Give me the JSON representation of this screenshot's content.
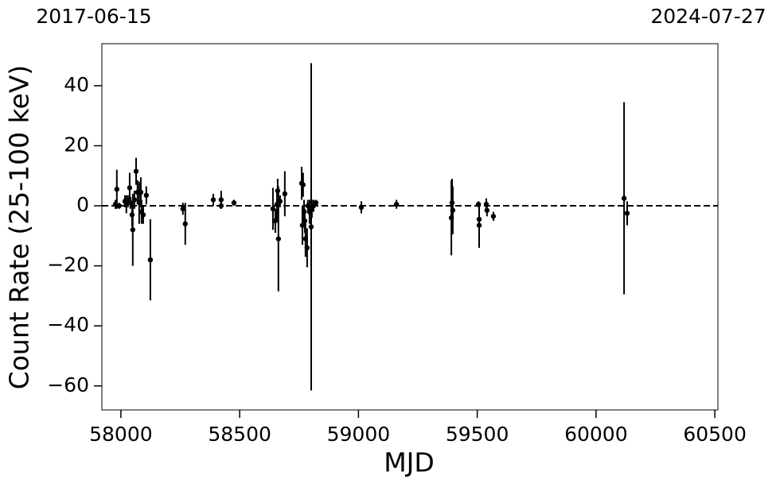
{
  "chart_data": {
    "type": "errorbar",
    "x2_labels": [
      "2017-06-15",
      "2024-07-27"
    ],
    "xlabel": "MJD",
    "ylabel": "Count Rate (25-100 keV)",
    "x": [
      57977,
      57983,
      57993,
      58017,
      58023,
      58030,
      58037,
      58040,
      58047,
      58050,
      58057,
      58064,
      58070,
      58077,
      58084,
      58087,
      58094,
      58107,
      58124,
      58261,
      58271,
      58389,
      58422,
      58422,
      58476,
      58640,
      58650,
      58657,
      58660,
      58663,
      58670,
      58690,
      58761,
      58764,
      58767,
      58771,
      58774,
      58777,
      58784,
      58787,
      58794,
      58801,
      58804,
      58811,
      58821,
      59012,
      59160,
      59391,
      59394,
      59397,
      59505,
      59508,
      59508,
      59538,
      59541,
      59568,
      60118,
      60131
    ],
    "values": [
      0.5,
      5.5,
      0,
      1.5,
      0.5,
      1.5,
      6,
      1,
      -3,
      -8,
      2,
      11.5,
      4.5,
      1,
      4.5,
      -2,
      -3,
      3.5,
      -18,
      -1,
      -6,
      2,
      2,
      0,
      1,
      -1,
      -5,
      0.5,
      5,
      -11,
      1.5,
      4,
      7.5,
      -6.5,
      7,
      -2,
      -5,
      -11,
      -14,
      0,
      -2,
      -7,
      -1,
      0,
      1,
      -0.5,
      0.5,
      -4,
      1,
      -1.5,
      0.5,
      -4.5,
      -6.5,
      0.5,
      -1.5,
      -3.5,
      2.5,
      -2.5
    ],
    "errors": [
      1.5,
      6.5,
      1,
      2,
      3,
      2,
      5,
      2,
      4,
      12,
      3,
      4.5,
      4,
      7,
      5,
      4,
      3,
      3,
      13.5,
      2,
      7,
      2,
      3,
      1,
      1,
      7,
      4,
      5,
      4,
      17.5,
      2,
      7.5,
      5.5,
      6.5,
      4,
      4,
      4,
      6,
      6.5,
      2,
      4,
      54.5,
      3,
      2,
      1,
      2,
      1.5,
      12.5,
      8,
      8,
      1,
      5,
      7.5,
      2,
      2,
      1.5,
      32,
      4
    ],
    "color": "#000000",
    "hline": 0,
    "xlim": [
      57920,
      60513
    ],
    "ylim": [
      -68,
      54
    ],
    "xticks": [
      58000,
      58500,
      59000,
      59500,
      60000,
      60500
    ],
    "yticks": [
      {
        "value": -60,
        "label": "−60"
      },
      {
        "value": -40,
        "label": "−40"
      },
      {
        "value": -20,
        "label": "−20"
      },
      0,
      20,
      40
    ]
  }
}
